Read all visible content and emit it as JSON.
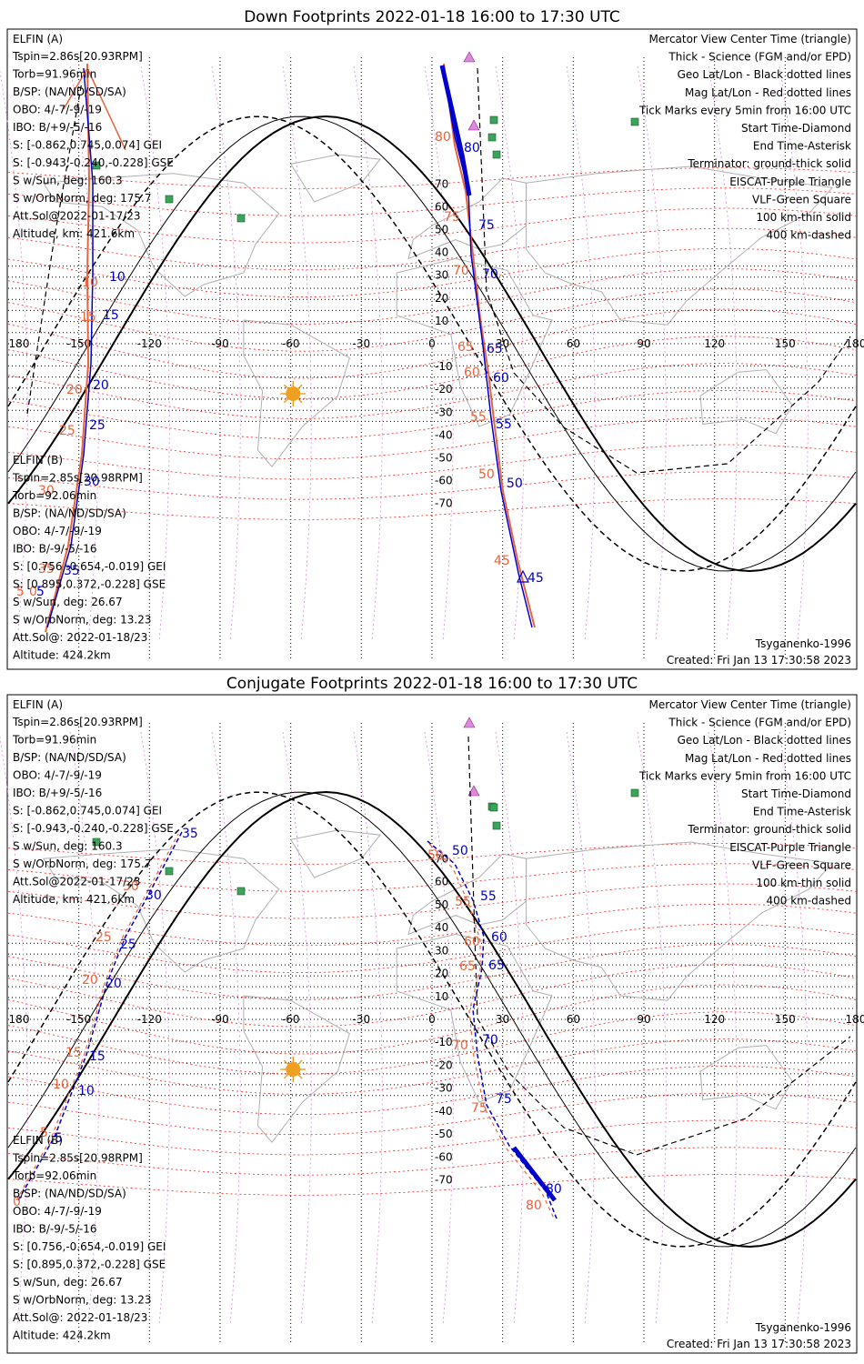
{
  "panels": [
    {
      "title": "Down Footprints 2022-01-18 16:00 to 17:30 UTC",
      "elfin_a": {
        "name": "ELFIN (A)",
        "lines": [
          "Tspin=2.86s[20.93RPM]",
          "Torb=91.96min",
          "B/SP: (NA/ND/SD/SA)",
          "OBO: 4/-7/-9/-19",
          "IBO: B/+9/-5/-16",
          "S: [-0.862,0.745,0.074] GEI",
          "S: [-0.943,-0.240,-0.228] GSE",
          "S w/Sun, deg: 160.3",
          "S w/OrbNorm, deg: 175.7",
          "Att.Sol@2022-01-17/23",
          "Altitude, km: 421.6km"
        ]
      },
      "elfin_b": {
        "name": "ELFIN (B)",
        "lines": [
          "Tspin=2.85s[20.98RPM]",
          "Torb=92.06min",
          "B/SP: (NA/ND/SD/SA)",
          "OBO: 4/-7/-9/-19",
          "IBO: B/-9/-5/-16",
          "S: [0.756,-0.654,-0.019] GEI",
          "S: [0.895,0.372,-0.228] GSE",
          "S w/Sun, deg: 26.67",
          "S w/OrbNorm, deg: 13.23",
          "Att.Sol@: 2022-01-18/23",
          "Altitude: 424.2km"
        ]
      },
      "tick_labels": {
        "orange": [
          "80",
          "75",
          "70",
          "65",
          "60",
          "55",
          "50",
          "45",
          "10",
          "15",
          "20",
          "25",
          "30",
          "35",
          "5",
          "0"
        ],
        "blue": [
          "80",
          "75",
          "70",
          "65",
          "60",
          "55",
          "50",
          "45",
          "10",
          "15",
          "20",
          "25",
          "30",
          "35",
          "5"
        ]
      }
    },
    {
      "title": "Conjugate Footprints 2022-01-18 16:00 to 17:30 UTC",
      "elfin_a": {
        "name": "ELFIN (A)",
        "lines": [
          "Tspin=2.86s[20.93RPM]",
          "Torb=91.96min",
          "B/SP: (NA/ND/SD/SA)",
          "OBO: 4/-7/-9/-19",
          "IBO: B/+9/-5/-16",
          "S: [-0.862,0.745,0.074] GEI",
          "S: [-0.943,-0.240,-0.228] GSE",
          "S w/Sun, deg: 160.3",
          "S w/OrbNorm, deg: 175.7",
          "Att.Sol@2022-01-17/23",
          "Altitude, km: 421.6km"
        ]
      },
      "elfin_b": {
        "name": "ELFIN (B)",
        "lines": [
          "Tspin=2.85s[20.98RPM]",
          "Torb=92.06min",
          "B/SP: (NA/ND/SD/SA)",
          "OBO: 4/-7/-9/-19",
          "IBO: B/-9/-5/-16",
          "S: [0.756,-0.654,-0.019] GEI",
          "S: [0.895,0.372,-0.228] GSE",
          "S w/Sun, deg: 26.67",
          "S w/OrbNorm, deg: 13.23",
          "Att.Sol@: 2022-01-18/23",
          "Altitude: 424.2km"
        ]
      },
      "tick_labels": {
        "orange": [
          "50",
          "55",
          "60",
          "65",
          "70",
          "75",
          "80",
          "30",
          "25",
          "20",
          "15",
          "10",
          "5",
          "0"
        ],
        "blue": [
          "50",
          "55",
          "60",
          "65",
          "70",
          "75",
          "80",
          "35",
          "30",
          "25",
          "20",
          "15",
          "10",
          "5"
        ]
      }
    }
  ],
  "legend": [
    {
      "text": "Mercator View Center Time (triangle)",
      "color": "#000000"
    },
    {
      "text": "Thick - Science (FGM and/or EPD)",
      "color": "#000000"
    },
    {
      "text": "Geo Lat/Lon - Black dotted lines",
      "color": "#000000"
    },
    {
      "text": "Mag Lat/Lon - Red dotted lines",
      "color": "#ff2020"
    },
    {
      "text": "Tick Marks every 5min from 16:00 UTC",
      "color": "#000000"
    },
    {
      "text": "Start Time-Diamond",
      "color": "#000000"
    },
    {
      "text": "End Time-Asterisk",
      "color": "#000000"
    },
    {
      "text": "Terminator: ground-thick solid",
      "color": "#000000"
    },
    {
      "text": "EISCAT-Purple Triangle",
      "color": "#dd88dd"
    },
    {
      "text": "VLF-Green Square",
      "color": "#3aa55a"
    },
    {
      "text": "100 km-thin solid",
      "color": "#000000"
    },
    {
      "text": "400 km-dashed",
      "color": "#000000"
    }
  ],
  "footer": {
    "model": "Tsyganenko-1996",
    "created": "Created: Fri Jan 13 17:30:58 2023"
  },
  "axes": {
    "lon_ticks": [
      "180",
      "-150",
      "-120",
      "-90",
      "-60",
      "-30",
      "0",
      "30",
      "60",
      "90",
      "120",
      "150",
      "180"
    ],
    "lat_ticks": [
      "70",
      "60",
      "50",
      "40",
      "30",
      "20",
      "10",
      "0",
      "-10",
      "-20",
      "-30",
      "-40",
      "-50",
      "-60",
      "-70"
    ],
    "lon_range": [
      -180,
      180
    ],
    "lat_range": [
      -80,
      80
    ]
  },
  "colors": {
    "elfin_a": "#0000cc",
    "elfin_b": "#e8643c",
    "mag_grid": "#ff2020",
    "geo_grid": "#000000",
    "eiscat": "#dd88dd",
    "vlf": "#3aa55a",
    "sun": "#f0a020"
  }
}
